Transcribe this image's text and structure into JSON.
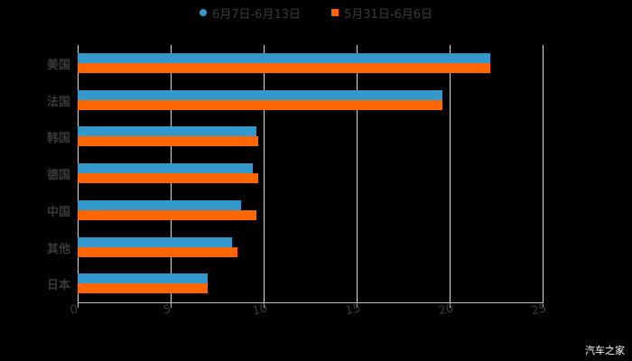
{
  "chart_data": {
    "type": "bar",
    "orientation": "horizontal",
    "title": "",
    "xlabel": "",
    "ylabel": "",
    "categories": [
      "美国",
      "法国",
      "韩国",
      "德国",
      "中国",
      "其他",
      "日本"
    ],
    "series": [
      {
        "name": "6月7日-6月13日",
        "color": "#3399cc",
        "values": [
          22.2,
          19.6,
          9.6,
          9.4,
          8.8,
          8.3,
          7.0
        ]
      },
      {
        "name": "5月31日-6月6日",
        "color": "#ff6600",
        "values": [
          22.2,
          19.6,
          9.7,
          9.7,
          9.6,
          8.6,
          7.0
        ]
      }
    ],
    "xlim": [
      0,
      25
    ],
    "xticks": [
      "0",
      "5",
      "10",
      "15",
      "20",
      "25"
    ],
    "grid": true,
    "legend_position": "top"
  },
  "legend": {
    "series_a": "6月7日-6月13日",
    "series_b": "5月31日-6月6日"
  },
  "watermark": "汽车之家"
}
